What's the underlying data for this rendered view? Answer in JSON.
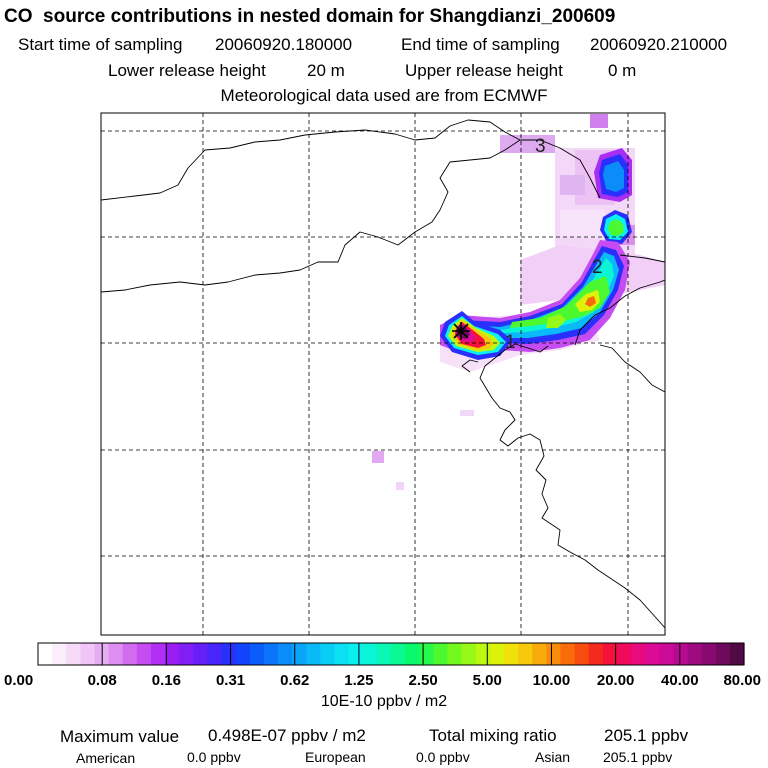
{
  "header": {
    "title": "CO  source contributions in nested domain for Shangdianzi_200609",
    "start_label": "Start time of sampling",
    "start_value": "20060920.180000",
    "end_label": "End time of sampling",
    "end_value": "20060920.210000",
    "lower_label": "Lower release height",
    "lower_value": "20 m",
    "upper_label": "Upper release height",
    "upper_value": "0 m",
    "met_note": "Meteorological data used are from ECMWF"
  },
  "map": {
    "trajectory_labels": [
      "1",
      "2",
      "3"
    ],
    "receptor_marker": "star-marker"
  },
  "chart_data": {
    "type": "heatmap",
    "title": "CO  source contributions in nested domain for Shangdianzi_200609",
    "colorbar": {
      "tick_labels": [
        "0.00",
        "0.08",
        "0.16",
        "0.31",
        "0.62",
        "1.25",
        "2.50",
        "5.00",
        "10.00",
        "20.00",
        "40.00",
        "80.00"
      ],
      "unit": "10E-10 ppbv / m2",
      "colors": [
        "#ffffff",
        "#fbeefc",
        "#f5dbf8",
        "#efc6f5",
        "#e6aef2",
        "#dd8ef0",
        "#d26cef",
        "#c44cf1",
        "#b22ff3",
        "#9a1cf3",
        "#7f1ff5",
        "#6420f7",
        "#4826f9",
        "#2a30fb",
        "#1244fc",
        "#0a5cfb",
        "#0a75fa",
        "#0a8df9",
        "#0aa4f8",
        "#0ab9f7",
        "#0acdf6",
        "#0adff4",
        "#0af0ee",
        "#0af5d6",
        "#0af7b6",
        "#0af892",
        "#0af96c",
        "#26f94a",
        "#4cf930",
        "#73f91e",
        "#98f916",
        "#bcf810",
        "#dcf20a",
        "#f0e10a",
        "#f8c80a",
        "#f9ab0a",
        "#f98d0a",
        "#f86c0a",
        "#f74c0e",
        "#f52a1e",
        "#f4123a",
        "#f00a5c",
        "#e80a7e",
        "#dc0a94",
        "#cc0a9a",
        "#b80a90",
        "#a00a80",
        "#880a70",
        "#6e0a5c",
        "#520a46"
      ]
    },
    "max_value": "0.498E-07 ppbv / m2",
    "total_mixing_ratio": "205.1 ppbv",
    "regional": [
      {
        "name": "American",
        "value": "0.0 ppbv"
      },
      {
        "name": "European",
        "value": "0.0 ppbv"
      },
      {
        "name": "Asian",
        "value": "205.1 ppbv"
      }
    ]
  },
  "footer": {
    "max_label": "Maximum value",
    "total_label": "Total mixing ratio"
  }
}
